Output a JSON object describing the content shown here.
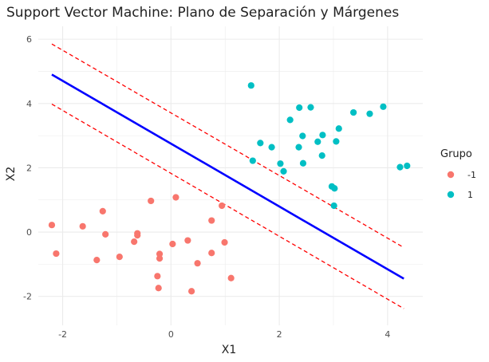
{
  "chart_data": {
    "type": "scatter",
    "title": "Support Vector Machine: Plano de Separación y Márgenes",
    "xlabel": "X1",
    "ylabel": "X2",
    "xlim": [
      -2.45,
      4.65
    ],
    "ylim": [
      -2.9,
      6.4
    ],
    "xticks": [
      -2,
      0,
      2,
      4
    ],
    "yticks": [
      -2,
      0,
      2,
      4,
      6
    ],
    "grid": true,
    "legend": {
      "title": "Grupo",
      "placement": "right",
      "entries": [
        {
          "label": "-1",
          "color": "#F8766D"
        },
        {
          "label": "1",
          "color": "#00BFC4"
        }
      ]
    },
    "series": [
      {
        "name": "-1",
        "color": "#F8766D",
        "points": [
          [
            -2.2,
            0.22
          ],
          [
            -2.12,
            -0.67
          ],
          [
            -1.63,
            0.18
          ],
          [
            -1.26,
            0.65
          ],
          [
            -1.21,
            -0.07
          ],
          [
            -1.37,
            -0.87
          ],
          [
            -0.95,
            -0.77
          ],
          [
            -0.62,
            -0.04
          ],
          [
            -0.62,
            -0.1
          ],
          [
            -0.68,
            -0.3
          ],
          [
            -0.37,
            0.97
          ],
          [
            -0.25,
            -1.37
          ],
          [
            -0.23,
            -1.74
          ],
          [
            -0.21,
            -0.82
          ],
          [
            -0.21,
            -0.68
          ],
          [
            0.03,
            -0.37
          ],
          [
            0.09,
            1.08
          ],
          [
            0.31,
            -0.26
          ],
          [
            0.38,
            -1.84
          ],
          [
            0.49,
            -0.97
          ],
          [
            0.75,
            -0.65
          ],
          [
            0.75,
            0.36
          ],
          [
            0.94,
            0.82
          ],
          [
            0.99,
            -0.32
          ],
          [
            1.11,
            -1.43
          ]
        ]
      },
      {
        "name": "1",
        "color": "#00BFC4",
        "points": [
          [
            1.48,
            4.56
          ],
          [
            1.51,
            2.22
          ],
          [
            1.65,
            2.77
          ],
          [
            1.86,
            2.64
          ],
          [
            2.02,
            2.13
          ],
          [
            2.08,
            1.89
          ],
          [
            2.2,
            3.49
          ],
          [
            2.36,
            2.64
          ],
          [
            2.37,
            3.87
          ],
          [
            2.43,
            2.99
          ],
          [
            2.44,
            2.14
          ],
          [
            2.58,
            3.88
          ],
          [
            2.71,
            2.81
          ],
          [
            2.79,
            2.38
          ],
          [
            2.8,
            3.02
          ],
          [
            2.97,
            1.42
          ],
          [
            3.01,
            0.82
          ],
          [
            3.02,
            1.36
          ],
          [
            3.05,
            2.82
          ],
          [
            3.1,
            3.22
          ],
          [
            3.37,
            3.72
          ],
          [
            3.67,
            3.68
          ],
          [
            3.92,
            3.9
          ],
          [
            4.23,
            2.02
          ],
          [
            4.36,
            2.06
          ]
        ]
      }
    ],
    "lines": [
      {
        "role": "hyperplane",
        "color": "#0000FF",
        "style": "solid",
        "from": [
          -2.2,
          4.9
        ],
        "to": [
          4.3,
          -1.45
        ]
      },
      {
        "role": "margin-upper",
        "color": "#FF0000",
        "style": "dashed",
        "from": [
          -2.2,
          5.85
        ],
        "to": [
          4.3,
          -0.48
        ]
      },
      {
        "role": "margin-lower",
        "color": "#FF0000",
        "style": "dashed",
        "from": [
          -2.2,
          3.98
        ],
        "to": [
          4.3,
          -2.38
        ]
      }
    ]
  }
}
